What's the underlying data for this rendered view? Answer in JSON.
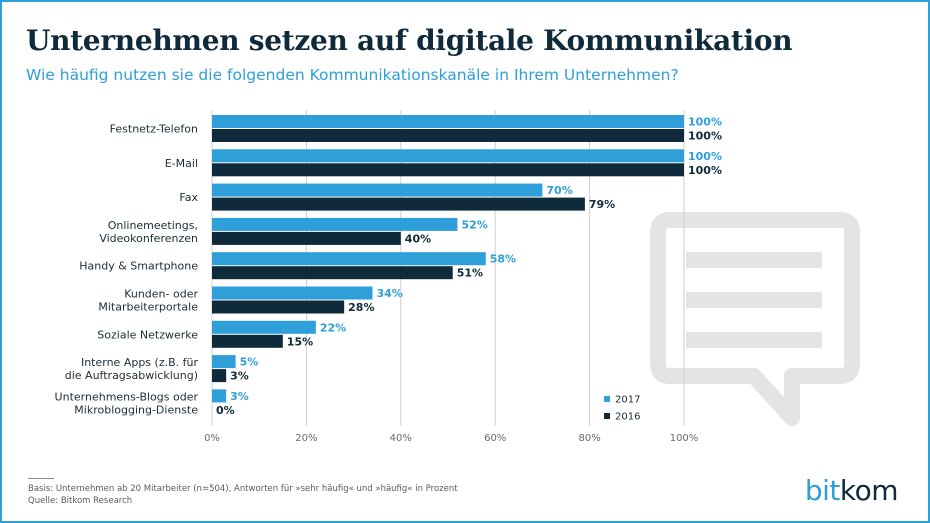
{
  "title": "Unternehmen setzen auf digitale Kommunikation",
  "subtitle": "Wie häufig nutzen sie die folgenden Kommunikationskanäle in Ihrem Unternehmen?",
  "footnote": {
    "basis": "Basis: Unternehmen ab 20 Mitarbeiter (n=504), Antworten für »sehr häufig« und »häufig« in Prozent",
    "source": "Quelle: Bitkom Research"
  },
  "logo": {
    "part1": "bit",
    "part2": "kom"
  },
  "icons": {
    "watermark": "speech-bubble-icon"
  },
  "colors": {
    "series_2017": "#2e9fd8",
    "series_2016": "#0f2a3a",
    "watermark": "#e4e4e4"
  },
  "chart_data": {
    "type": "bar",
    "orientation": "horizontal",
    "categories": [
      [
        "Festnetz-Telefon"
      ],
      [
        "E-Mail"
      ],
      [
        "Fax"
      ],
      [
        "Onlinemeetings,",
        "Videokonferenzen"
      ],
      [
        "Handy & Smartphone"
      ],
      [
        "Kunden- oder",
        "Mitarbeiterportale"
      ],
      [
        "Soziale Netzwerke"
      ],
      [
        "Interne Apps (z.B. für",
        "die Auftragsabwicklung)"
      ],
      [
        "Unternehmens-Blogs oder",
        "Mikroblogging-Dienste"
      ]
    ],
    "series": [
      {
        "name": "2017",
        "values": [
          100,
          100,
          70,
          52,
          58,
          34,
          22,
          5,
          3
        ]
      },
      {
        "name": "2016",
        "values": [
          100,
          100,
          79,
          40,
          51,
          28,
          15,
          3,
          0
        ]
      }
    ],
    "xlim": [
      0,
      100
    ],
    "xticks": [
      0,
      20,
      40,
      60,
      80,
      100
    ],
    "tick_suffix": "%",
    "value_suffix": "%",
    "grid": true,
    "legend_position": "bottom-right"
  }
}
